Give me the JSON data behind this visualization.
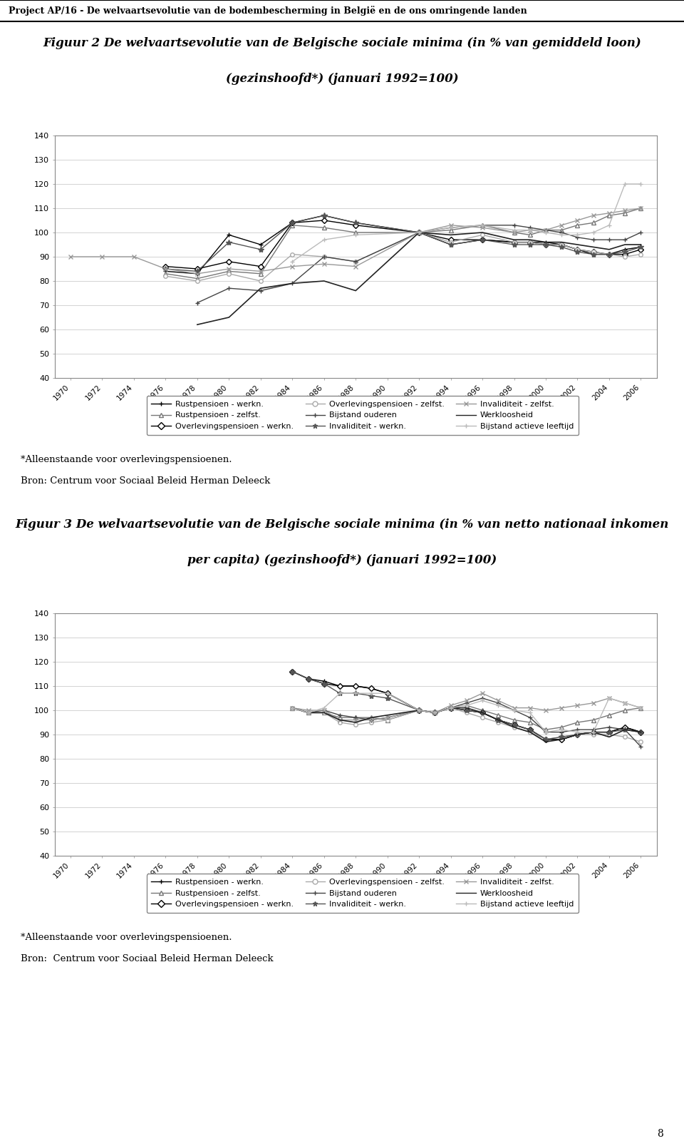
{
  "page_header": "Project AP/16 - De welvaartsevolutie van de bodembescherming in België en de ons omringende landen",
  "fig2_title_line1": "Figuur 2 De welvaartsevolutie van de Belgische sociale minima (in % van gemiddeld loon)",
  "fig2_title_line2": "(gezinshoofd*) (januari 1992=100)",
  "fig3_title_line1": "Figuur 3 De welvaartsevolutie van de Belgische sociale minima (in % van netto nationaal inkomen",
  "fig3_title_line2": "per capita) (gezinshoofd*) (januari 1992=100)",
  "footnote": "*Alleenstaande voor overlevingspensioenen.",
  "source2": "Bron: Centrum voor Sociaal Beleid Herman Deleeck",
  "source3": "Bron:  Centrum voor Sociaal Beleid Herman Deleeck",
  "page_num": "8",
  "ylim": [
    40,
    140
  ],
  "yticks": [
    40,
    50,
    60,
    70,
    80,
    90,
    100,
    110,
    120,
    130,
    140
  ],
  "xticks": [
    1970,
    1972,
    1974,
    1976,
    1978,
    1980,
    1982,
    1984,
    1986,
    1988,
    1990,
    1992,
    1994,
    1996,
    1998,
    2000,
    2002,
    2004,
    2006
  ],
  "fig2_series": {
    "rustpensioen_werkn": {
      "label": "Rustpensioen - werkn.",
      "color": "#000000",
      "marker": "+",
      "markersize": 5,
      "lw": 1.0,
      "data": {
        "1976": 84,
        "1978": 83,
        "1980": 99,
        "1982": 95,
        "1984": 104,
        "1986": 107,
        "1988": 104,
        "1992": 100,
        "1994": 95,
        "1996": 97,
        "1998": 96,
        "1999": 96,
        "2000": 96,
        "2001": 95,
        "2002": 93,
        "2003": 91,
        "2004": 91,
        "2005": 93,
        "2006": 94
      }
    },
    "rustpensioen_zelfst": {
      "label": "Rustpensioen - zelfst.",
      "color": "#777777",
      "marker": "^",
      "markersize": 5,
      "lw": 1.0,
      "data": {
        "1976": 83,
        "1978": 81,
        "1980": 84,
        "1982": 83,
        "1984": 103,
        "1986": 102,
        "1988": 100,
        "1992": 100,
        "1994": 101,
        "1996": 103,
        "1998": 100,
        "1999": 99,
        "2000": 101,
        "2001": 101,
        "2002": 103,
        "2003": 104,
        "2004": 107,
        "2005": 108,
        "2006": 110
      }
    },
    "overlevingspensioen_werkn": {
      "label": "Overlevingspensioen - werkn.",
      "color": "#000000",
      "marker": "D",
      "markersize": 4,
      "lw": 1.0,
      "data": {
        "1976": 86,
        "1978": 85,
        "1980": 88,
        "1982": 86,
        "1984": 104,
        "1986": 105,
        "1988": 103,
        "1992": 100,
        "1994": 97,
        "1996": 97,
        "1998": 96,
        "1999": 96,
        "2000": 95,
        "2001": 95,
        "2002": 93,
        "2003": 92,
        "2004": 91,
        "2005": 91,
        "2006": 93
      }
    },
    "overlevingspensioen_zelfst": {
      "label": "Overlevingspensioen - zelfst.",
      "color": "#aaaaaa",
      "marker": "o",
      "markersize": 4,
      "lw": 1.0,
      "data": {
        "1976": 82,
        "1978": 80,
        "1980": 83,
        "1982": 80,
        "1984": 91,
        "1986": 90,
        "1988": 88,
        "1992": 100,
        "1994": 96,
        "1996": 99,
        "1998": 96,
        "1999": 96,
        "2000": 95,
        "2001": 95,
        "2002": 93,
        "2003": 92,
        "2004": 91,
        "2005": 90,
        "2006": 91
      }
    },
    "bijstand_ouderen": {
      "label": "Bijstand ouderen",
      "color": "#444444",
      "marker": "+",
      "markersize": 5,
      "lw": 1.0,
      "data": {
        "1978": 71,
        "1980": 77,
        "1982": 76,
        "1984": 79,
        "1986": 90,
        "1988": 88,
        "1992": 100,
        "1994": 102,
        "1996": 103,
        "1998": 103,
        "1999": 102,
        "2000": 101,
        "2001": 100,
        "2002": 98,
        "2003": 97,
        "2004": 97,
        "2005": 97,
        "2006": 100
      }
    },
    "invaliditeit_werkn": {
      "label": "Invaliditeit - werkn.",
      "color": "#555555",
      "marker": "*",
      "markersize": 6,
      "lw": 1.0,
      "data": {
        "1976": 85,
        "1978": 84,
        "1980": 96,
        "1982": 93,
        "1984": 104,
        "1986": 107,
        "1988": 104,
        "1992": 100,
        "1994": 95,
        "1996": 97,
        "1998": 95,
        "1999": 95,
        "2000": 95,
        "2001": 94,
        "2002": 92,
        "2003": 91,
        "2004": 91,
        "2005": 92,
        "2006": 94
      }
    },
    "invaliditeit_zelfst": {
      "label": "Invaliditeit - zelfst.",
      "color": "#999999",
      "marker": "x",
      "markersize": 5,
      "lw": 1.0,
      "data": {
        "1970": 90,
        "1972": 90,
        "1974": 90,
        "1976": 85,
        "1978": 83,
        "1980": 85,
        "1982": 84,
        "1984": 86,
        "1986": 87,
        "1988": 86,
        "1992": 100,
        "1994": 103,
        "1996": 102,
        "1998": 100,
        "1999": 101,
        "2000": 101,
        "2001": 103,
        "2002": 105,
        "2003": 107,
        "2004": 108,
        "2005": 109,
        "2006": 110
      }
    },
    "werkloosheid": {
      "label": "Werkloosheid",
      "color": "#222222",
      "marker": "None",
      "markersize": 0,
      "lw": 1.2,
      "data": {
        "1978": 62,
        "1980": 65,
        "1982": 77,
        "1984": 79,
        "1986": 80,
        "1988": 76,
        "1992": 100,
        "1994": 99,
        "1996": 100,
        "1998": 97,
        "1999": 97,
        "2000": 96,
        "2001": 96,
        "2002": 95,
        "2003": 94,
        "2004": 93,
        "2005": 95,
        "2006": 95
      }
    },
    "bijstand_actieve": {
      "label": "Bijstand actieve leeftijd",
      "color": "#bbbbbb",
      "marker": "+",
      "markersize": 5,
      "lw": 1.0,
      "data": {
        "1984": 88,
        "1986": 97,
        "1988": 99,
        "1992": 100,
        "1994": 102,
        "1996": 103,
        "1998": 101,
        "1999": 101,
        "2000": 100,
        "2001": 99,
        "2002": 99,
        "2003": 100,
        "2004": 103,
        "2005": 120,
        "2006": 120
      }
    }
  },
  "fig3_series": {
    "rustpensioen_werkn": {
      "label": "Rustpensioen - werkn.",
      "color": "#000000",
      "marker": "+",
      "markersize": 5,
      "lw": 1.0,
      "data": {
        "1984": 116,
        "1985": 113,
        "1986": 112,
        "1987": 110,
        "1988": 110,
        "1989": 109,
        "1990": 107,
        "1992": 100,
        "1993": 99,
        "1994": 101,
        "1995": 100,
        "1996": 99,
        "1997": 96,
        "1998": 94,
        "1999": 92,
        "2000": 88,
        "2001": 88,
        "2002": 90,
        "2003": 91,
        "2004": 91,
        "2005": 93,
        "2006": 91
      }
    },
    "rustpensioen_zelfst": {
      "label": "Rustpensioen - zelfst.",
      "color": "#777777",
      "marker": "^",
      "markersize": 5,
      "lw": 1.0,
      "data": {
        "1984": 101,
        "1985": 99,
        "1986": 99,
        "1987": 97,
        "1988": 97,
        "1989": 97,
        "1990": 96,
        "1992": 100,
        "1993": 99,
        "1994": 101,
        "1995": 102,
        "1996": 100,
        "1997": 98,
        "1998": 96,
        "1999": 95,
        "2000": 92,
        "2001": 93,
        "2002": 95,
        "2003": 96,
        "2004": 98,
        "2005": 100,
        "2006": 101
      }
    },
    "overlevingspensioen_werkn": {
      "label": "Overlevingspensioen - werkn.",
      "color": "#000000",
      "marker": "D",
      "markersize": 4,
      "lw": 1.0,
      "data": {
        "1984": 116,
        "1985": 113,
        "1986": 111,
        "1987": 110,
        "1988": 110,
        "1989": 109,
        "1990": 107,
        "1992": 100,
        "1993": 99,
        "1994": 101,
        "1995": 100,
        "1996": 99,
        "1997": 96,
        "1998": 94,
        "1999": 92,
        "2000": 88,
        "2001": 88,
        "2002": 90,
        "2003": 91,
        "2004": 91,
        "2005": 93,
        "2006": 91
      }
    },
    "overlevingspensioen_zelfst": {
      "label": "Overlevingspensioen - zelfst.",
      "color": "#aaaaaa",
      "marker": "o",
      "markersize": 4,
      "lw": 1.0,
      "data": {
        "1984": 101,
        "1985": 99,
        "1986": 99,
        "1987": 95,
        "1988": 94,
        "1989": 95,
        "1990": 96,
        "1992": 100,
        "1993": 99,
        "1994": 101,
        "1995": 99,
        "1996": 97,
        "1997": 95,
        "1998": 93,
        "1999": 91,
        "2000": 88,
        "2001": 89,
        "2002": 90,
        "2003": 90,
        "2004": 90,
        "2005": 89,
        "2006": 87
      }
    },
    "bijstand_ouderen": {
      "label": "Bijstand ouderen",
      "color": "#444444",
      "marker": "+",
      "markersize": 5,
      "lw": 1.0,
      "data": {
        "1984": 101,
        "1985": 99,
        "1986": 100,
        "1987": 98,
        "1988": 97,
        "1989": 96,
        "1990": 97,
        "1992": 100,
        "1993": 99,
        "1994": 101,
        "1995": 103,
        "1996": 105,
        "1997": 103,
        "1998": 100,
        "1999": 97,
        "2000": 91,
        "2001": 91,
        "2002": 92,
        "2003": 92,
        "2004": 93,
        "2005": 92,
        "2006": 85
      }
    },
    "invaliditeit_werkn": {
      "label": "Invaliditeit - werkn.",
      "color": "#555555",
      "marker": "*",
      "markersize": 6,
      "lw": 1.0,
      "data": {
        "1984": 116,
        "1985": 113,
        "1986": 111,
        "1987": 107,
        "1988": 107,
        "1989": 106,
        "1990": 105,
        "1992": 100,
        "1993": 99,
        "1994": 101,
        "1995": 100,
        "1996": 99,
        "1997": 96,
        "1998": 94,
        "1999": 92,
        "2000": 88,
        "2001": 89,
        "2002": 90,
        "2003": 91,
        "2004": 91,
        "2005": 92,
        "2006": 91
      }
    },
    "invaliditeit_zelfst": {
      "label": "Invaliditeit - zelfst.",
      "color": "#999999",
      "marker": "x",
      "markersize": 5,
      "lw": 1.0,
      "data": {
        "1984": 101,
        "1985": 100,
        "1986": 100,
        "1987": 96,
        "1988": 96,
        "1989": 96,
        "1990": 97,
        "1992": 100,
        "1993": 99,
        "1994": 102,
        "1995": 104,
        "1996": 107,
        "1997": 104,
        "1998": 101,
        "1999": 101,
        "2000": 100,
        "2001": 101,
        "2002": 102,
        "2003": 103,
        "2004": 105,
        "2005": 103,
        "2006": 101
      }
    },
    "werkloosheid": {
      "label": "Werkloosheid",
      "color": "#222222",
      "marker": "None",
      "markersize": 0,
      "lw": 1.2,
      "data": {
        "1984": 101,
        "1985": 99,
        "1986": 99,
        "1987": 96,
        "1988": 95,
        "1989": 97,
        "1990": 98,
        "1992": 100,
        "1993": 99,
        "1994": 101,
        "1995": 101,
        "1996": 99,
        "1997": 96,
        "1998": 93,
        "1999": 91,
        "2000": 87,
        "2001": 88,
        "2002": 90,
        "2003": 91,
        "2004": 89,
        "2005": 92,
        "2006": 91
      }
    },
    "bijstand_actieve": {
      "label": "Bijstand actieve leeftijd",
      "color": "#bbbbbb",
      "marker": "+",
      "markersize": 5,
      "lw": 1.0,
      "data": {
        "1984": 101,
        "1985": 99,
        "1986": 101,
        "1987": 107,
        "1988": 107,
        "1989": 107,
        "1990": 107,
        "1992": 100,
        "1993": 99,
        "1994": 101,
        "1995": 102,
        "1996": 104,
        "1997": 102,
        "1998": 100,
        "1999": 99,
        "2000": 91,
        "2001": 92,
        "2002": 91,
        "2003": 91,
        "2004": 105,
        "2005": 103,
        "2006": 101
      }
    }
  },
  "legend_entries": [
    {
      "label": "Rustpensioen - werkn.",
      "color": "#000000",
      "marker": "+"
    },
    {
      "label": "Rustpensioen - zelfst.",
      "color": "#777777",
      "marker": "^"
    },
    {
      "label": "Overlevingspensioen - werkn.",
      "color": "#000000",
      "marker": "D"
    },
    {
      "label": "Overlevingspensioen - zelfst.",
      "color": "#aaaaaa",
      "marker": "o"
    },
    {
      "label": "Bijstand ouderen",
      "color": "#444444",
      "marker": "+"
    },
    {
      "label": "Invaliditeit - werkn.",
      "color": "#555555",
      "marker": "*"
    },
    {
      "label": "Invaliditeit - zelfst.",
      "color": "#999999",
      "marker": "x"
    },
    {
      "label": "Werkloosheid",
      "color": "#222222",
      "marker": "None"
    },
    {
      "label": "Bijstand actieve leeftijd",
      "color": "#bbbbbb",
      "marker": "+"
    }
  ]
}
